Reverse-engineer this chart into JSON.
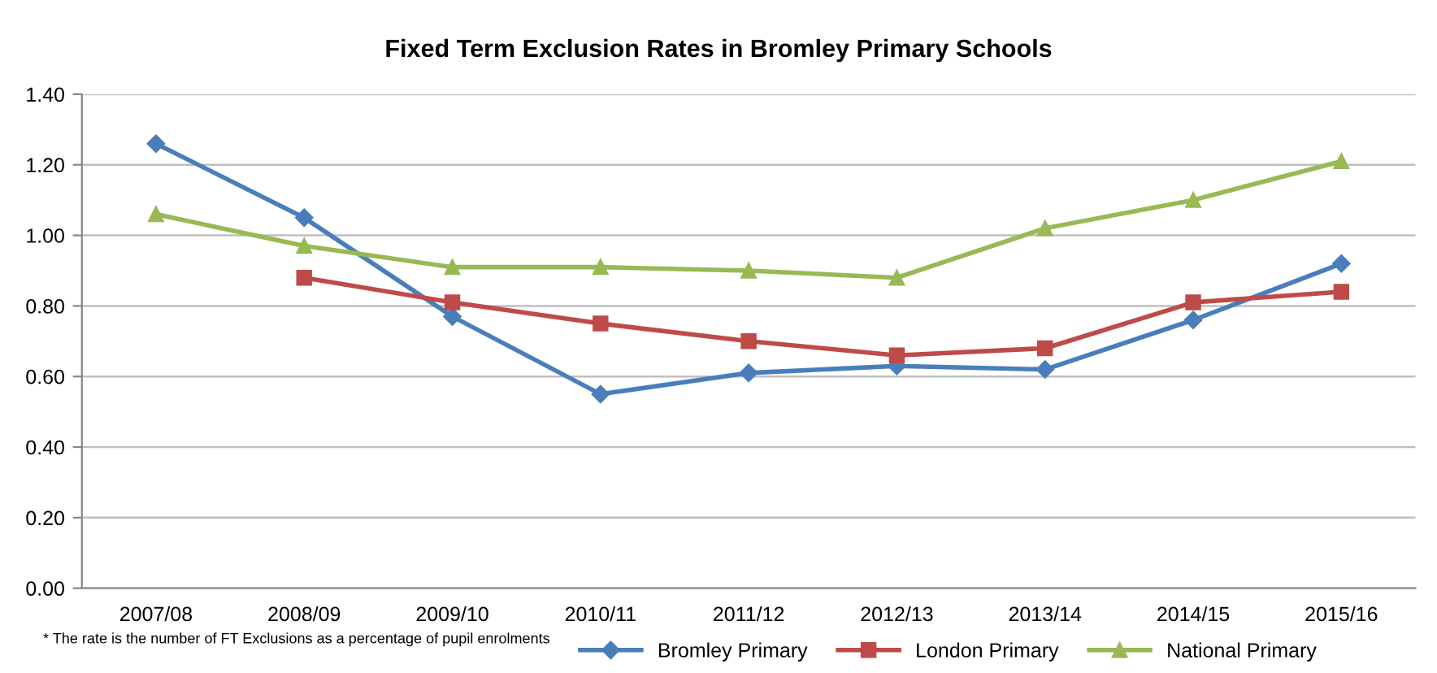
{
  "chart_data": {
    "type": "line",
    "title": "Fixed Term Exclusion Rates in Bromley Primary Schools",
    "categories": [
      "2007/08",
      "2008/09",
      "2009/10",
      "2010/11",
      "2011/12",
      "2012/13",
      "2013/14",
      "2014/15",
      "2015/16"
    ],
    "series": [
      {
        "name": "Bromley Primary",
        "color": "#4a7ebb",
        "marker": "diamond",
        "values": [
          1.26,
          1.05,
          0.77,
          0.55,
          0.61,
          0.63,
          0.62,
          0.76,
          0.92
        ]
      },
      {
        "name": "London Primary",
        "color": "#be4b48",
        "marker": "square",
        "values": [
          null,
          0.88,
          0.81,
          0.75,
          0.7,
          0.66,
          0.68,
          0.81,
          0.84
        ]
      },
      {
        "name": "National Primary",
        "color": "#98b954",
        "marker": "triangle",
        "values": [
          1.06,
          0.97,
          0.91,
          0.91,
          0.9,
          0.88,
          1.02,
          1.1,
          1.21
        ]
      }
    ],
    "ylim": [
      0,
      1.4
    ],
    "yticks": [
      {
        "value": 0,
        "label": "0.00"
      },
      {
        "value": 0.2,
        "label": "0.20"
      },
      {
        "value": 0.4,
        "label": "0.40"
      },
      {
        "value": 0.6,
        "label": "0.60"
      },
      {
        "value": 0.8,
        "label": "0.80"
      },
      {
        "value": 1.0,
        "label": "1.00"
      },
      {
        "value": 1.2,
        "label": "1.20"
      },
      {
        "value": 1.4,
        "label": "1.40"
      }
    ],
    "grid": "y",
    "legend": "bottom",
    "line_style": "solid",
    "annotations": [
      "* The rate is the number of FT Exclusions as a percentage of pupil enrolments"
    ]
  }
}
